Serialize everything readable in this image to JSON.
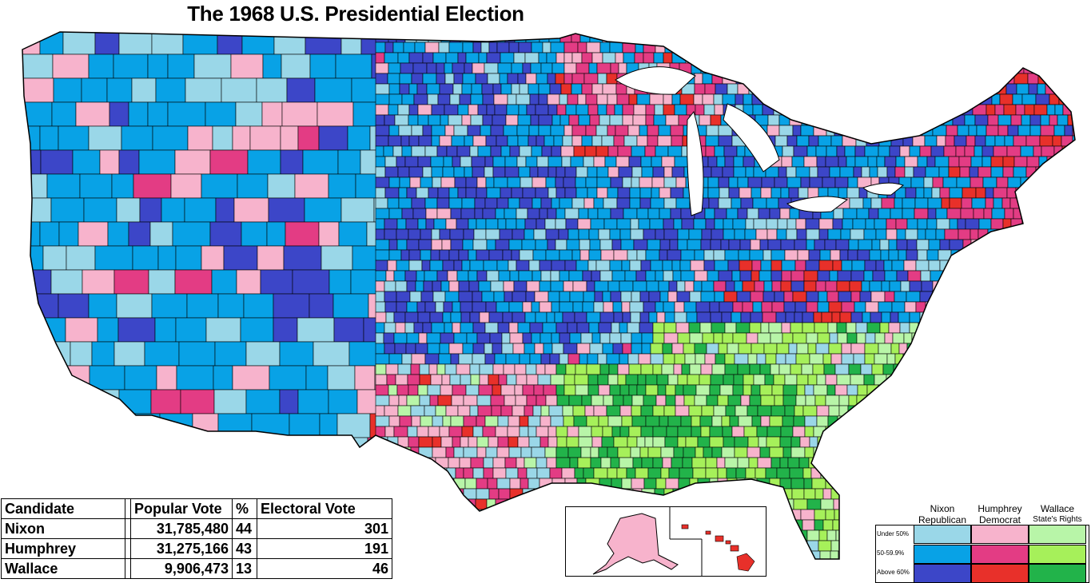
{
  "title": "The 1968 U.S. Presidential Election",
  "colors": {
    "nixon": [
      "#9ad7e8",
      "#08a2e6",
      "#3c46c8"
    ],
    "humphrey": [
      "#f7b3cc",
      "#e33c84",
      "#e8302a"
    ],
    "wallace": [
      "#b8f5a8",
      "#a6f05a",
      "#22b34a"
    ],
    "background": "#ffffff",
    "border": "#000000"
  },
  "table": {
    "headers": {
      "candidate": "Candidate",
      "popular": "Popular Vote",
      "percent": "%",
      "electoral": "Electoral Vote"
    },
    "rows": [
      {
        "candidate": "Nixon",
        "popular": "31,785,480",
        "percent": "44",
        "electoral": "301"
      },
      {
        "candidate": "Humphrey",
        "popular": "31,275,166",
        "percent": "43",
        "electoral": "191"
      },
      {
        "candidate": "Wallace",
        "popular": "9,906,473",
        "percent": "13",
        "electoral": "46"
      }
    ]
  },
  "legend": {
    "columns": [
      {
        "name": "Nixon",
        "party": "Republican"
      },
      {
        "name": "Humphrey",
        "party": "Democrat"
      },
      {
        "name": "Wallace",
        "party": "State's Rights"
      }
    ],
    "rows": [
      "Under 50%",
      "50-59.9%",
      "Above 60%"
    ]
  }
}
